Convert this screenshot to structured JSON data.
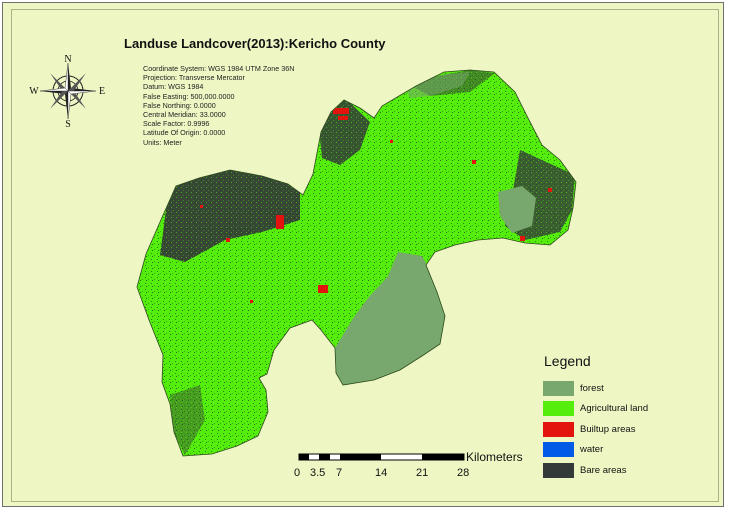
{
  "map": {
    "title": "Landuse Landcover(2013):Kericho County",
    "metadata": [
      "Coordinate System: WGS 1984 UTM Zone 36N",
      "Projection: Transverse Mercator",
      "Datum: WGS 1984",
      "False Easting: 500,000.0000",
      "False Northing: 0.0000",
      "Central Meridian: 33.0000",
      "Scale Factor: 0.9996",
      "Latitude Of Origin: 0.0000",
      "Units: Meter"
    ],
    "compass": {
      "n": "N",
      "s": "S",
      "e": "E",
      "w": "W"
    },
    "legend": {
      "title": "Legend",
      "items": [
        {
          "label": "forest",
          "color": "#78a86d"
        },
        {
          "label": "Agricultural land",
          "color": "#55ee0c"
        },
        {
          "label": "Builtup areas",
          "color": "#e3140e"
        },
        {
          "label": "water",
          "color": "#005ce6"
        },
        {
          "label": "Bare areas",
          "color": "#333a38"
        }
      ]
    },
    "scale": {
      "unit": "Kilometers",
      "ticks": [
        "0",
        "3.5",
        "7",
        "14",
        "21",
        "28"
      ]
    }
  }
}
